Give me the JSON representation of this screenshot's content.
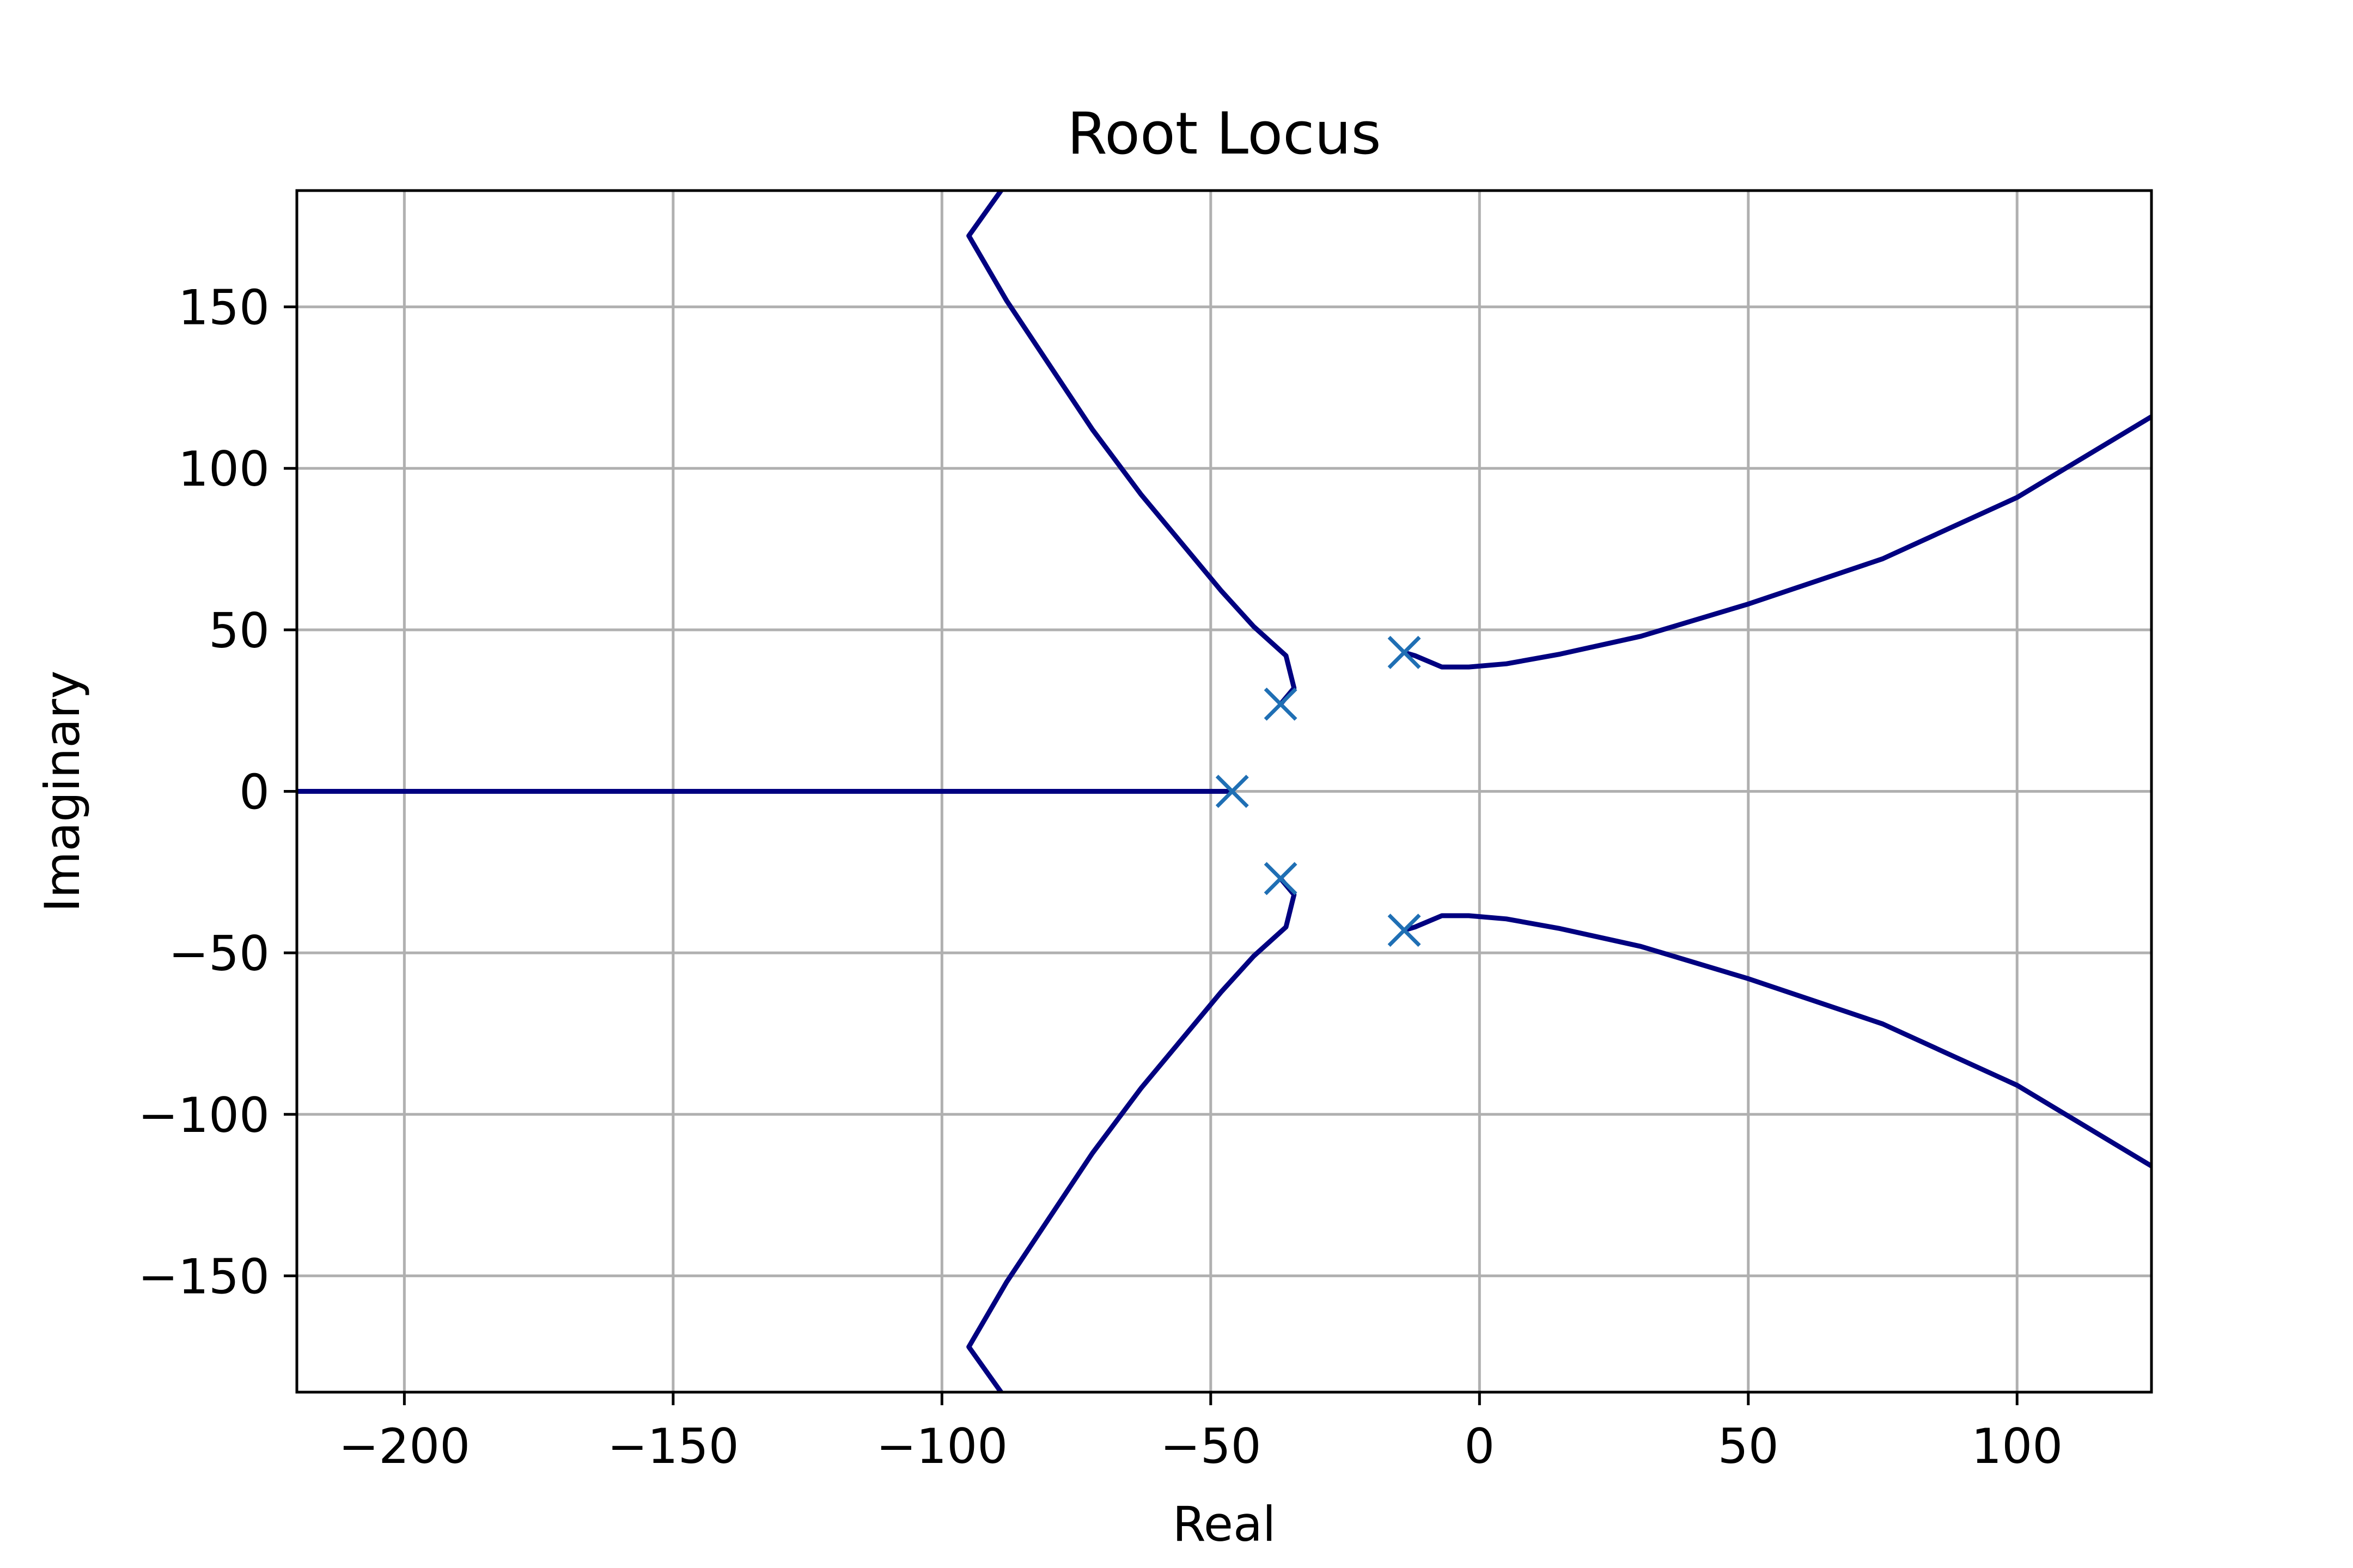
{
  "chart_data": {
    "type": "line",
    "title": "Root Locus",
    "xlabel": "Real",
    "ylabel": "Imaginary",
    "xlim": [
      -220,
      125
    ],
    "ylim": [
      -186,
      186
    ],
    "grid": true,
    "xticks": [
      {
        "value": -200,
        "label": "−200"
      },
      {
        "value": -150,
        "label": "−150"
      },
      {
        "value": -100,
        "label": "−100"
      },
      {
        "value": -50,
        "label": "−50"
      },
      {
        "value": 0,
        "label": "0"
      },
      {
        "value": 50,
        "label": "50"
      },
      {
        "value": 100,
        "label": "100"
      }
    ],
    "yticks": [
      {
        "value": 150,
        "label": "150"
      },
      {
        "value": 100,
        "label": "100"
      },
      {
        "value": 50,
        "label": "50"
      },
      {
        "value": 0,
        "label": "0"
      },
      {
        "value": -50,
        "label": "−50"
      },
      {
        "value": -100,
        "label": "−100"
      },
      {
        "value": -150,
        "label": "−150"
      }
    ],
    "colors": {
      "locus": "#000080",
      "poles": "#1f6fb4",
      "grid": "#b0b0b0",
      "frame": "#000000"
    },
    "poles": [
      {
        "x": -46,
        "y": 0
      },
      {
        "x": -37,
        "y": 27
      },
      {
        "x": -37,
        "y": -27
      },
      {
        "x": -14,
        "y": 43
      },
      {
        "x": -14,
        "y": -43
      }
    ],
    "branches": [
      {
        "points": [
          [
            -220,
            0
          ],
          [
            -46,
            0
          ]
        ]
      },
      {
        "points": [
          [
            -37,
            27
          ],
          [
            -34.5,
            32
          ],
          [
            -36,
            42
          ],
          [
            -42,
            51
          ],
          [
            -48,
            62
          ],
          [
            -55,
            76
          ],
          [
            -63,
            92
          ],
          [
            -72,
            112
          ],
          [
            -80,
            132
          ],
          [
            -88,
            152
          ],
          [
            -95,
            172
          ],
          [
            -89,
            186
          ]
        ]
      },
      {
        "points": [
          [
            -37,
            -27
          ],
          [
            -34.5,
            -32
          ],
          [
            -36,
            -42
          ],
          [
            -42,
            -51
          ],
          [
            -48,
            -62
          ],
          [
            -55,
            -76
          ],
          [
            -63,
            -92
          ],
          [
            -72,
            -112
          ],
          [
            -80,
            -132
          ],
          [
            -88,
            -152
          ],
          [
            -95,
            -172
          ],
          [
            -89,
            -186
          ]
        ]
      },
      {
        "points": [
          [
            -14,
            43
          ],
          [
            -12,
            42
          ],
          [
            -7,
            38.5
          ],
          [
            -2,
            38.5
          ],
          [
            5,
            39.5
          ],
          [
            15,
            42.5
          ],
          [
            30,
            48
          ],
          [
            50,
            58
          ],
          [
            75,
            72
          ],
          [
            100,
            91
          ],
          [
            125,
            116
          ]
        ]
      },
      {
        "points": [
          [
            -14,
            -43
          ],
          [
            -12,
            -42
          ],
          [
            -7,
            -38.5
          ],
          [
            -2,
            -38.5
          ],
          [
            5,
            -39.5
          ],
          [
            15,
            -42.5
          ],
          [
            30,
            -48
          ],
          [
            50,
            -58
          ],
          [
            75,
            -72
          ],
          [
            100,
            -91
          ],
          [
            125,
            -116
          ]
        ]
      }
    ]
  }
}
